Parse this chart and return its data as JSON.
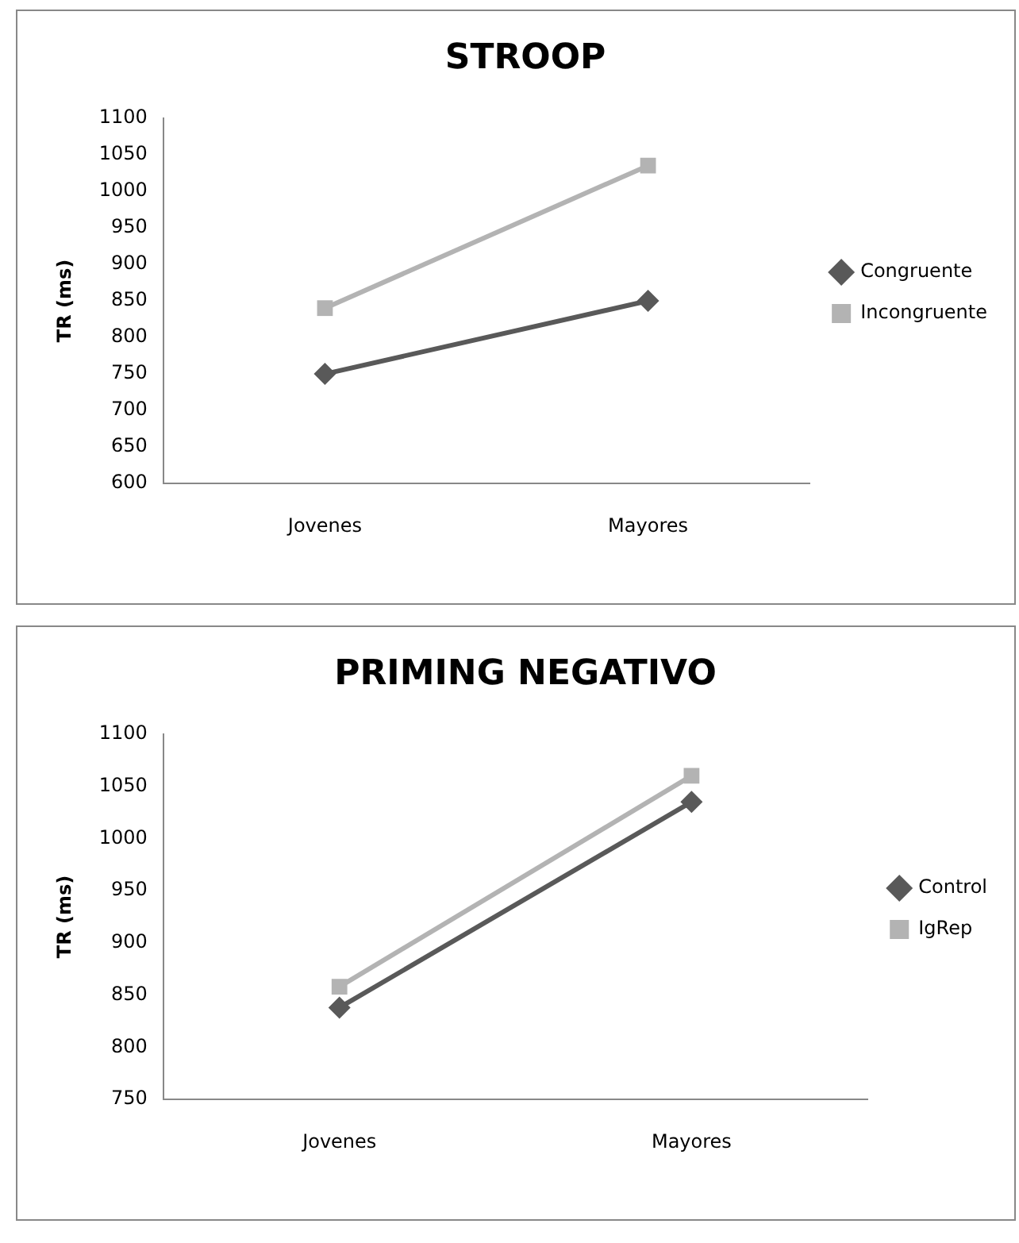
{
  "chart_data": [
    {
      "type": "line",
      "title": "STROOP",
      "ylabel": "TR (ms)",
      "categories": [
        "Jovenes",
        "Mayores"
      ],
      "series": [
        {
          "name": "Congruente",
          "color": "#595959",
          "marker": "diamond",
          "values": [
            750,
            850
          ]
        },
        {
          "name": "Incongruente",
          "color": "#b3b3b3",
          "marker": "square",
          "values": [
            840,
            1035
          ]
        }
      ],
      "ylim": [
        600,
        1100
      ],
      "yticks": [
        600,
        650,
        700,
        750,
        800,
        850,
        900,
        950,
        1000,
        1050,
        1100
      ],
      "grid": false,
      "legend": "right",
      "line_style": "solid"
    },
    {
      "type": "line",
      "title": "PRIMING NEGATIVO",
      "ylabel": "TR (ms)",
      "categories": [
        "Jovenes",
        "Mayores"
      ],
      "series": [
        {
          "name": "Control",
          "color": "#595959",
          "marker": "diamond",
          "values": [
            838,
            1035
          ]
        },
        {
          "name": "IgRep",
          "color": "#b3b3b3",
          "marker": "square",
          "values": [
            858,
            1060
          ]
        }
      ],
      "ylim": [
        750,
        1100
      ],
      "yticks": [
        750,
        800,
        850,
        900,
        950,
        1000,
        1050,
        1100
      ],
      "grid": false,
      "legend": "right",
      "line_style": "solid"
    }
  ]
}
